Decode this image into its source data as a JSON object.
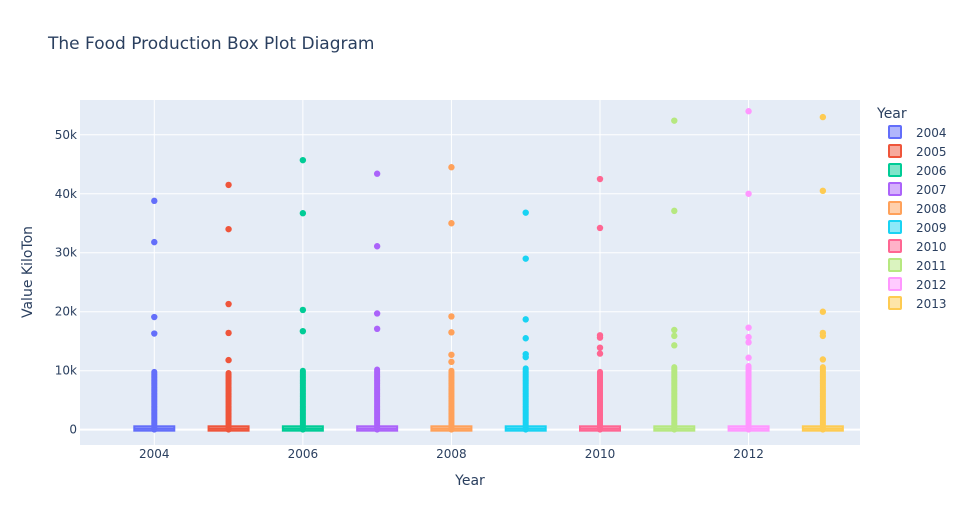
{
  "chart_data": {
    "type": "box",
    "title": "The Food Production Box Plot Diagram",
    "xlabel": "Year",
    "ylabel": "Value KiloTon",
    "ylim": [
      -2600,
      55900
    ],
    "xlim": [
      2003.0,
      2013.5
    ],
    "yticks": [
      0,
      10000,
      20000,
      30000,
      40000,
      50000
    ],
    "ytick_labels": [
      "0",
      "10k",
      "20k",
      "30k",
      "40k",
      "50k"
    ],
    "xticks": [
      2004,
      2006,
      2008,
      2010,
      2012
    ],
    "xtick_labels": [
      "2004",
      "2006",
      "2008",
      "2010",
      "2012"
    ],
    "grid": true,
    "legend_title": "Year",
    "legend_position": "right",
    "series": [
      {
        "name": "2004",
        "x": 2004,
        "color": "#636efa",
        "box": [
          0,
          150,
          400
        ],
        "dense_max": 9800,
        "outliers": [
          38800,
          31800,
          19100,
          16300
        ]
      },
      {
        "name": "2005",
        "x": 2005,
        "color": "#EF553B",
        "box": [
          0,
          150,
          400
        ],
        "dense_max": 9700,
        "outliers": [
          41500,
          34000,
          21300,
          16400,
          11800
        ]
      },
      {
        "name": "2006",
        "x": 2006,
        "color": "#00cc96",
        "box": [
          0,
          150,
          400
        ],
        "dense_max": 10000,
        "outliers": [
          45700,
          36700,
          20300,
          16700
        ]
      },
      {
        "name": "2007",
        "x": 2007,
        "color": "#ab63fa",
        "box": [
          0,
          150,
          400
        ],
        "dense_max": 10300,
        "outliers": [
          43400,
          31100,
          19700,
          17100
        ]
      },
      {
        "name": "2008",
        "x": 2008,
        "color": "#FFA15A",
        "box": [
          0,
          150,
          400
        ],
        "dense_max": 10100,
        "outliers": [
          44500,
          35000,
          19200,
          16500,
          12700,
          11500
        ]
      },
      {
        "name": "2009",
        "x": 2009,
        "color": "#19d3f3",
        "box": [
          0,
          150,
          400
        ],
        "dense_max": 10400,
        "outliers": [
          36800,
          29000,
          18700,
          15500,
          12800,
          12300
        ]
      },
      {
        "name": "2010",
        "x": 2010,
        "color": "#FF6692",
        "box": [
          0,
          150,
          400
        ],
        "dense_max": 9900,
        "outliers": [
          42500,
          34200,
          16000,
          15600,
          13900,
          12900
        ]
      },
      {
        "name": "2011",
        "x": 2011,
        "color": "#B6E880",
        "box": [
          0,
          150,
          400
        ],
        "dense_max": 10600,
        "outliers": [
          52400,
          37100,
          16900,
          15900,
          14300
        ]
      },
      {
        "name": "2012",
        "x": 2012,
        "color": "#FF97FF",
        "box": [
          0,
          150,
          400
        ],
        "dense_max": 10800,
        "outliers": [
          54000,
          40000,
          17300,
          15700,
          14800,
          12200
        ]
      },
      {
        "name": "2013",
        "x": 2013,
        "color": "#FECB52",
        "box": [
          0,
          150,
          400
        ],
        "dense_max": 10600,
        "outliers": [
          53000,
          40500,
          20000,
          16400,
          15900,
          11900
        ]
      }
    ]
  }
}
